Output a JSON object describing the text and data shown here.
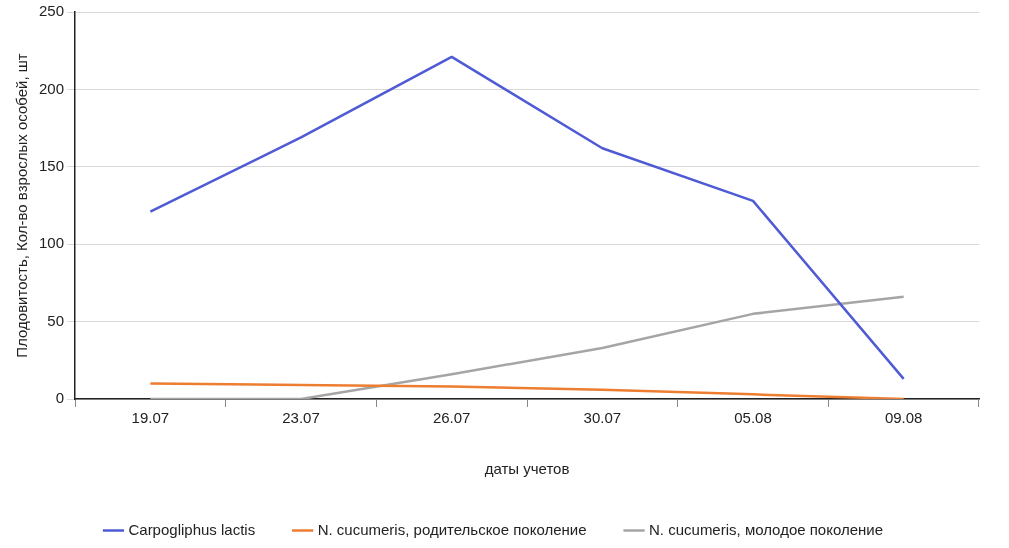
{
  "chart_data": {
    "type": "line",
    "xlabel": "даты учетов",
    "ylabel": "Плодовитость, Кол-во взрослых особей, шт",
    "categories": [
      "19.07",
      "23.07",
      "26.07",
      "30.07",
      "05.08",
      "09.08"
    ],
    "series": [
      {
        "name": "Carpogliphus lactis",
        "color": "#4f5bd5",
        "values": [
          121,
          169,
          221,
          162,
          128,
          13
        ]
      },
      {
        "name": "N. cucumeris, родительское поколение",
        "color": "#ed7d31",
        "values": [
          10,
          9,
          8,
          6,
          3,
          0
        ]
      },
      {
        "name": "N. cucumeris, молодое поколение",
        "color": "#a5a5a5",
        "values": [
          0,
          0,
          16,
          33,
          55,
          66
        ]
      }
    ],
    "ylim": [
      0,
      250
    ],
    "yticks": [
      0,
      50,
      100,
      150,
      200,
      250
    ],
    "grid": "y",
    "legend": "bottom",
    "marker": "none",
    "line_style": "solid"
  }
}
